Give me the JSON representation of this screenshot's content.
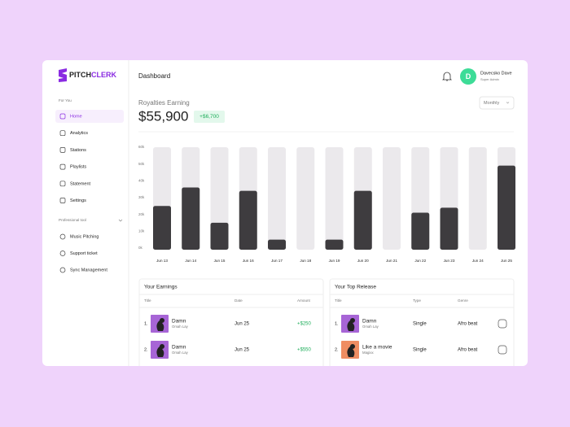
{
  "sidebar": {
    "logo_a": "PITCH",
    "logo_b": "CLERK",
    "section1": "For You",
    "items": [
      "Home",
      "Analytics",
      "Stations",
      "Playlists",
      "Statement",
      "Settings"
    ],
    "section2": "Professional tool",
    "tools": [
      "Music Pitching",
      "Support ticket",
      "Sync Management"
    ]
  },
  "header": {
    "title": "Dashboard",
    "avatar_initial": "D",
    "user_name": "Davecsko Dave",
    "user_role": "Super Admin"
  },
  "summary": {
    "label": "Royalties Earning",
    "total": "$55,900",
    "change": "+$6,700",
    "period": "Monthly"
  },
  "chart_data": {
    "type": "bar",
    "categories": [
      "Jun 13",
      "Jun 14",
      "Jun 15",
      "Jun 16",
      "Jun 17",
      "Jun 18",
      "Jun 19",
      "Jun 20",
      "Jun 21",
      "Jun 22",
      "Jun 23",
      "Jun 24",
      "Jun 25"
    ],
    "values": [
      26000,
      37000,
      16000,
      35000,
      6000,
      0,
      6000,
      35000,
      0,
      22000,
      25000,
      0,
      50000
    ],
    "color": "#3e3c3f",
    "ylim": [
      0,
      60000
    ],
    "yticks": [
      {
        "value": 0,
        "label": "0k"
      },
      {
        "value": 10000,
        "label": "10k"
      },
      {
        "value": 20000,
        "label": "20k"
      },
      {
        "value": 30000,
        "label": "30k"
      },
      {
        "value": 40000,
        "label": "40k"
      },
      {
        "value": 50000,
        "label": "50k"
      },
      {
        "value": 60000,
        "label": "60k"
      }
    ]
  },
  "earnings": {
    "title": "Your Earnings",
    "columns": [
      "Title",
      "Date",
      "Amount"
    ],
    "rows": [
      {
        "index": "1.",
        "title": "Damn",
        "artist": "Omah Lay",
        "date": "Jun 25",
        "amount": "+$250"
      },
      {
        "index": "2.",
        "title": "Damn",
        "artist": "Omah Lay",
        "date": "Jun 25",
        "amount": "+$550"
      }
    ]
  },
  "top_release": {
    "title": "Your Top Release",
    "columns": [
      "Title",
      "Type",
      "Genre"
    ],
    "rows": [
      {
        "index": "1.",
        "title": "Damn",
        "artist": "Omah Lay",
        "type": "Single",
        "genre": "Afro beat"
      },
      {
        "index": "2.",
        "title": "Like a movie",
        "artist": "Magixx",
        "type": "Single",
        "genre": "Afro beat"
      }
    ]
  }
}
